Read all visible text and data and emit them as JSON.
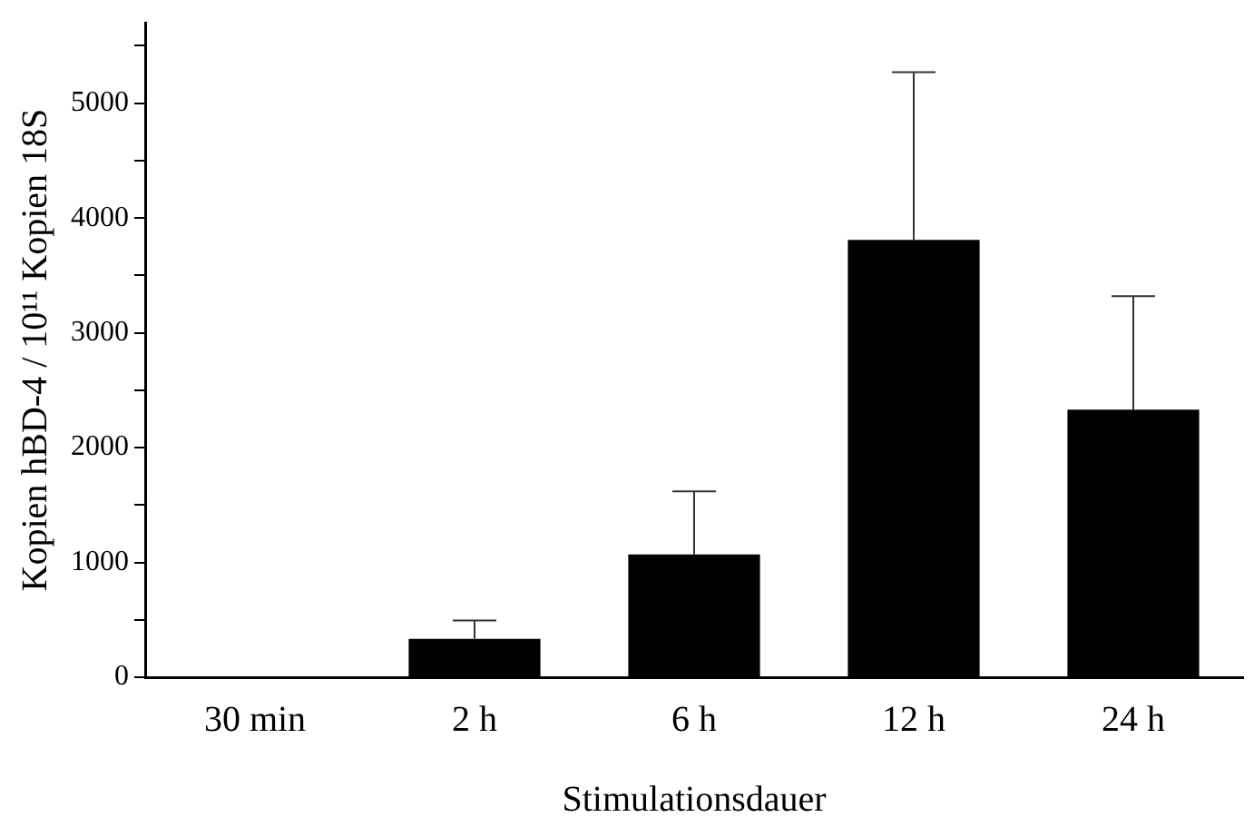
{
  "chart_data": {
    "type": "bar",
    "xlabel": "Stimulationsdauer",
    "ylabel": "Kopien hBD-4 / 10¹¹ Kopien 18S",
    "categories": [
      "30 min",
      "2 h",
      "6 h",
      "12 h",
      "24 h"
    ],
    "values": [
      0,
      335,
      1070,
      3810,
      2330
    ],
    "errors": [
      null,
      [
        335,
        495
      ],
      [
        1070,
        1620
      ],
      [
        3810,
        5270
      ],
      [
        2330,
        3320
      ]
    ],
    "color": "#000000",
    "ylim": [
      0,
      5700
    ],
    "yticks": [
      0,
      {
        "value": 500,
        "label": null
      },
      1000,
      {
        "value": 1500,
        "label": null
      },
      2000,
      {
        "value": 2500,
        "label": null
      },
      3000,
      {
        "value": 3500,
        "label": null
      },
      4000,
      {
        "value": 4500,
        "label": null
      },
      5000,
      {
        "value": 5500,
        "label": null
      }
    ],
    "grid": false,
    "legend": false
  }
}
